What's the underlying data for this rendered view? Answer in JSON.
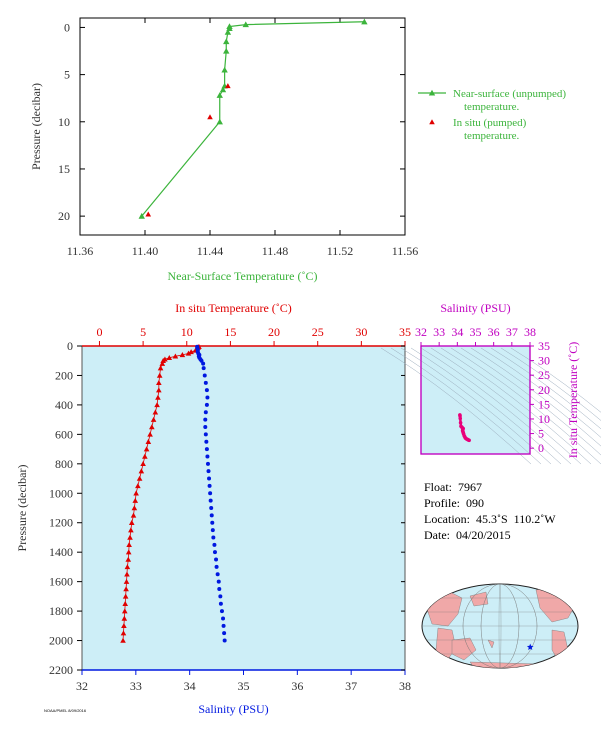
{
  "chart_data": [
    {
      "id": "near-surface",
      "type": "line",
      "xlabel": "Near-Surface Temperature (˚C)",
      "ylabel": "Pressure (decibar)",
      "xlim": [
        11.36,
        11.56
      ],
      "ylim": [
        22,
        -1
      ],
      "xticks": [
        "11.36",
        "11.40",
        "11.44",
        "11.48",
        "11.52",
        "11.56"
      ],
      "yticks": [
        "0",
        "5",
        "10",
        "15",
        "20"
      ],
      "xtick_values": [
        11.36,
        11.4,
        11.44,
        11.48,
        11.52,
        11.56
      ],
      "ytick_values": [
        0,
        5,
        10,
        15,
        20
      ],
      "legend_position": "right",
      "series": [
        {
          "name": "Near-surface (unpumped) temperature.",
          "legend_lines": [
            "Near-surface (unpumped)",
            "temperature."
          ],
          "color": "#3cb43c",
          "marker": "triangle",
          "x": [
            11.535,
            11.462,
            11.452,
            11.452,
            11.451,
            11.45,
            11.45,
            11.449,
            11.449,
            11.448,
            11.446,
            11.446,
            11.398
          ],
          "y": [
            -0.6,
            -0.3,
            -0.1,
            0.1,
            0.5,
            1.5,
            2.5,
            4.5,
            6.2,
            6.6,
            7.2,
            10.0,
            20.0
          ]
        },
        {
          "name": "In situ (pumped) temperature.",
          "legend_lines": [
            "In situ (pumped)",
            "temperature."
          ],
          "color": "#e00000",
          "marker": "triangle",
          "x": [
            11.451,
            11.44,
            11.402
          ],
          "y": [
            6.2,
            9.5,
            19.8
          ]
        }
      ]
    },
    {
      "id": "profile",
      "type": "scatter",
      "top_label": "In situ Temperature (˚C)",
      "bottom_label": "Salinity (PSU)",
      "ylabel": "Pressure (decibar)",
      "temp_lim": [
        -2,
        35
      ],
      "sal_lim": [
        32,
        38
      ],
      "ylim": [
        2200,
        0
      ],
      "temp_ticks": [
        "0",
        "5",
        "10",
        "15",
        "20",
        "25",
        "30",
        "35"
      ],
      "temp_tick_values": [
        0,
        5,
        10,
        15,
        20,
        25,
        30,
        35
      ],
      "sal_ticks": [
        "32",
        "33",
        "34",
        "35",
        "36",
        "37",
        "38"
      ],
      "sal_tick_values": [
        32,
        33,
        34,
        35,
        36,
        37,
        38
      ],
      "yticks": [
        "0",
        "200",
        "400",
        "600",
        "800",
        "1000",
        "1200",
        "1400",
        "1600",
        "1800",
        "2000",
        "2200"
      ],
      "ytick_values": [
        0,
        200,
        400,
        600,
        800,
        1000,
        1200,
        1400,
        1600,
        1800,
        2000,
        2200
      ],
      "background": "#cdeef7",
      "temperature": {
        "color": "#e00000",
        "marker": "triangle",
        "pressure": [
          5,
          10,
          20,
          30,
          40,
          50,
          60,
          70,
          80,
          90,
          100,
          120,
          150,
          200,
          250,
          300,
          350,
          400,
          450,
          500,
          550,
          600,
          650,
          700,
          750,
          800,
          850,
          900,
          950,
          1000,
          1050,
          1100,
          1150,
          1200,
          1250,
          1300,
          1350,
          1400,
          1450,
          1500,
          1550,
          1600,
          1650,
          1700,
          1750,
          1800,
          1850,
          1900,
          1950,
          2000
        ],
        "values": [
          11.4,
          11.3,
          11.2,
          11.0,
          10.5,
          10.2,
          9.5,
          8.7,
          8.0,
          7.5,
          7.3,
          7.2,
          7.0,
          6.9,
          6.8,
          6.8,
          6.7,
          6.6,
          6.4,
          6.2,
          6.0,
          5.8,
          5.6,
          5.4,
          5.2,
          5.0,
          4.8,
          4.6,
          4.4,
          4.2,
          4.1,
          4.0,
          3.9,
          3.7,
          3.6,
          3.5,
          3.4,
          3.35,
          3.3,
          3.2,
          3.15,
          3.1,
          3.05,
          3.0,
          2.95,
          2.9,
          2.85,
          2.8,
          2.75,
          2.7
        ]
      },
      "salinity": {
        "color": "#0018e0",
        "marker": "dot",
        "pressure": [
          5,
          10,
          20,
          30,
          40,
          50,
          60,
          70,
          80,
          90,
          100,
          120,
          150,
          200,
          250,
          300,
          350,
          400,
          450,
          500,
          550,
          600,
          650,
          700,
          750,
          800,
          850,
          900,
          950,
          1000,
          1050,
          1100,
          1150,
          1200,
          1250,
          1300,
          1350,
          1400,
          1450,
          1500,
          1550,
          1600,
          1650,
          1700,
          1750,
          1800,
          1850,
          1900,
          1950,
          2000
        ],
        "values": [
          34.14,
          34.14,
          34.15,
          34.15,
          34.15,
          34.16,
          34.18,
          34.17,
          34.18,
          34.2,
          34.22,
          34.25,
          34.26,
          34.28,
          34.3,
          34.32,
          34.33,
          34.32,
          34.3,
          34.29,
          34.29,
          34.3,
          34.31,
          34.32,
          34.33,
          34.34,
          34.35,
          34.36,
          34.37,
          34.38,
          34.39,
          34.4,
          34.41,
          34.42,
          34.43,
          34.44,
          34.46,
          34.47,
          34.49,
          34.5,
          34.52,
          34.54,
          34.55,
          34.57,
          34.58,
          34.6,
          34.62,
          34.63,
          34.64,
          34.65
        ]
      }
    },
    {
      "id": "ts-diagram",
      "type": "scatter",
      "top_label": "Salinity (PSU)",
      "right_label": "In situ Temperature (˚C)",
      "xlim": [
        32,
        38
      ],
      "ylim": [
        -2,
        35
      ],
      "xticks": [
        "32",
        "33",
        "34",
        "35",
        "36",
        "37",
        "38"
      ],
      "xtick_values": [
        32,
        33,
        34,
        35,
        36,
        37,
        38
      ],
      "yticks": [
        "0",
        "5",
        "10",
        "15",
        "20",
        "25",
        "30",
        "35"
      ],
      "ytick_values": [
        0,
        5,
        10,
        15,
        20,
        25,
        30,
        35
      ],
      "color": "#e8007a",
      "salinity": [
        34.14,
        34.15,
        34.16,
        34.18,
        34.2,
        34.25,
        34.28,
        34.3,
        34.32,
        34.3,
        34.29,
        34.31,
        34.33,
        34.35,
        34.38,
        34.41,
        34.44,
        34.48,
        34.52,
        34.56,
        34.6,
        34.65
      ],
      "temperature": [
        11.4,
        11.0,
        10.2,
        8.7,
        7.5,
        7.2,
        6.9,
        6.8,
        6.7,
        6.4,
        6.0,
        5.6,
        5.2,
        4.8,
        4.2,
        3.9,
        3.5,
        3.3,
        3.1,
        3.0,
        2.85,
        2.7
      ]
    }
  ],
  "float_info": {
    "float": "Float:  7967",
    "profile": "Profile:  090",
    "location": "Location:  45.3˚S  110.2˚W",
    "date": "Date:  04/20/2015"
  },
  "credit": "NOAA/PMEL 8/09/2016",
  "colors": {
    "axis": "#000000",
    "nearsurface_label": "#3cb43c",
    "temperature_axis": "#e00000",
    "salinity_axis": "#0018e0",
    "ts_axis": "#c000c0",
    "tick_text": "#333333",
    "ocean": "#cdeef7",
    "land": "#f0a8a8",
    "location_marker": "#0018e0"
  },
  "map": {
    "lat": -45.3,
    "lon": -110.2,
    "marker_icon": "star-icon"
  }
}
